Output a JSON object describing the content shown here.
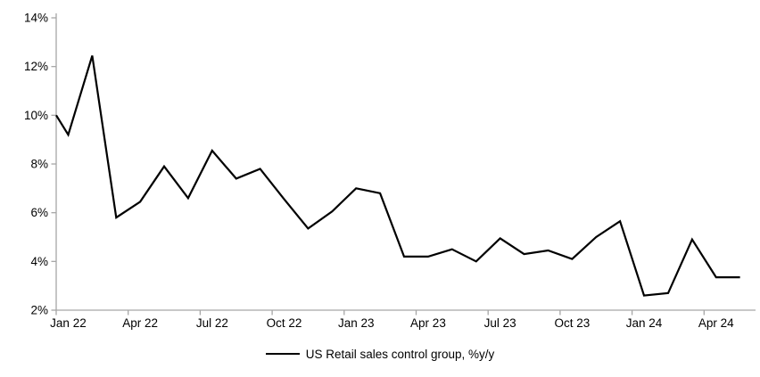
{
  "chart_data": {
    "type": "line",
    "title": "",
    "xlabel": "",
    "ylabel": "",
    "ylim": [
      2,
      14
    ],
    "y_step": 2,
    "grid": false,
    "legend_position": "bottom",
    "axis_color": "#a6a6a6",
    "line_color": "#000000",
    "y_tick_labels": [
      "2%",
      "4%",
      "6%",
      "8%",
      "10%",
      "12%",
      "14%"
    ],
    "x_tick_labels": [
      "Jan 22",
      "Apr 22",
      "Jul 22",
      "Oct 22",
      "Jan 23",
      "Apr 23",
      "Jul 23",
      "Oct 23",
      "Jan 24",
      "Apr 24"
    ],
    "lead_in_value": 10.0,
    "categories": [
      "Jan 22",
      "Feb 22",
      "Mar 22",
      "Apr 22",
      "May 22",
      "Jun 22",
      "Jul 22",
      "Aug 22",
      "Sep 22",
      "Oct 22",
      "Nov 22",
      "Dec 22",
      "Jan 23",
      "Feb 23",
      "Mar 23",
      "Apr 23",
      "May 23",
      "Jun 23",
      "Jul 23",
      "Aug 23",
      "Sep 23",
      "Oct 23",
      "Nov 23",
      "Dec 23",
      "Jan 24",
      "Feb 24",
      "Mar 24",
      "Apr 24",
      "May 24"
    ],
    "series": [
      {
        "name": "US Retail sales control group, %y/y",
        "color": "#000000",
        "values": [
          9.2,
          12.45,
          5.8,
          6.45,
          7.9,
          6.6,
          8.55,
          7.4,
          7.8,
          6.55,
          5.35,
          6.05,
          7.0,
          6.8,
          4.2,
          4.2,
          4.5,
          4.0,
          4.95,
          4.3,
          4.45,
          4.1,
          5.0,
          5.65,
          2.6,
          2.7,
          4.9,
          3.35,
          3.35
        ]
      }
    ]
  },
  "legend": {
    "label": "US Retail sales control group, %y/y"
  }
}
